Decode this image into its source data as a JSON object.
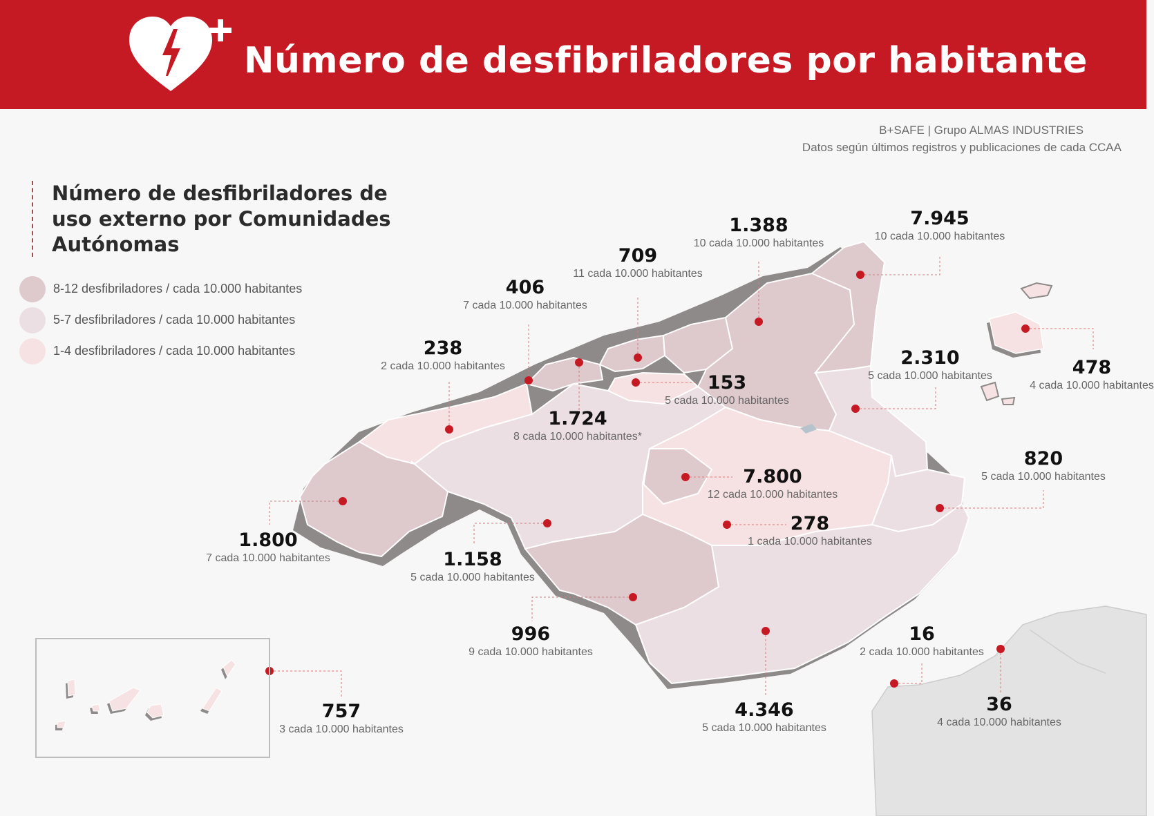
{
  "title": "Número de desfibriladores por habitante",
  "source": {
    "line1": "B+SAFE | Grupo ALMAS INDUSTRIES",
    "line2": "Datos según últimos registros y publicaciones de cada CCAA"
  },
  "subtitle": "Número de desfibriladores de uso externo por Comunidades Autónomas",
  "colors": {
    "brand_red": "#c51a23",
    "high": "#dec9cd",
    "mid": "#ecdfe3",
    "low": "#f7e2e3",
    "marker": "#c51a23"
  },
  "legend": [
    {
      "label": "8-12 desfibriladores / cada 10.000 habitantes",
      "color": "#dec9cd"
    },
    {
      "label": "5-7 desfibriladores / cada 10.000 habitantes",
      "color": "#ecdfe3"
    },
    {
      "label": "1-4 desfibriladores / cada 10.000 habitantes",
      "color": "#f7e2e3"
    }
  ],
  "regions": [
    {
      "id": "catalonia",
      "value": "7.945",
      "rate": "10 cada 10.000 habitantes"
    },
    {
      "id": "aragon",
      "value": "1.388",
      "rate": "10 cada 10.000 habitantes"
    },
    {
      "id": "navarra",
      "value": "709",
      "rate": "11 cada 10.000 habitantes"
    },
    {
      "id": "basque",
      "value": "406",
      "rate": "7 cada 10.000 habitantes"
    },
    {
      "id": "asturias",
      "value": "238",
      "rate": "2 cada 10.000 habitantes"
    },
    {
      "id": "rioja",
      "value": "153",
      "rate": "5 cada 10.000 habitantes"
    },
    {
      "id": "cantabria",
      "value": "1.724",
      "rate": "8 cada 10.000 habitantes*"
    },
    {
      "id": "valencia",
      "value": "2.310",
      "rate": "5 cada 10.000 habitantes"
    },
    {
      "id": "baleares",
      "value": "478",
      "rate": "4 cada 10.000 habitantes"
    },
    {
      "id": "madrid",
      "value": "7.800",
      "rate": "12 cada 10.000 habitantes"
    },
    {
      "id": "murcia",
      "value": "820",
      "rate": "5 cada 10.000 habitantes"
    },
    {
      "id": "galicia",
      "value": "1.800",
      "rate": "7 cada 10.000 habitantes"
    },
    {
      "id": "castilla_leon",
      "value": "1.158",
      "rate": "5 cada 10.000 habitantes"
    },
    {
      "id": "castilla_la_mancha",
      "value": "278",
      "rate": "1 cada 10.000 habitantes"
    },
    {
      "id": "extremadura",
      "value": "996",
      "rate": "9 cada 10.000 habitantes"
    },
    {
      "id": "andalucia",
      "value": "4.346",
      "rate": "5 cada 10.000 habitantes"
    },
    {
      "id": "ceuta",
      "value": "16",
      "rate": "2 cada 10.000 habitantes"
    },
    {
      "id": "melilla",
      "value": "36",
      "rate": "4 cada 10.000 habitantes"
    },
    {
      "id": "canarias",
      "value": "757",
      "rate": "3 cada 10.000 habitantes"
    }
  ]
}
